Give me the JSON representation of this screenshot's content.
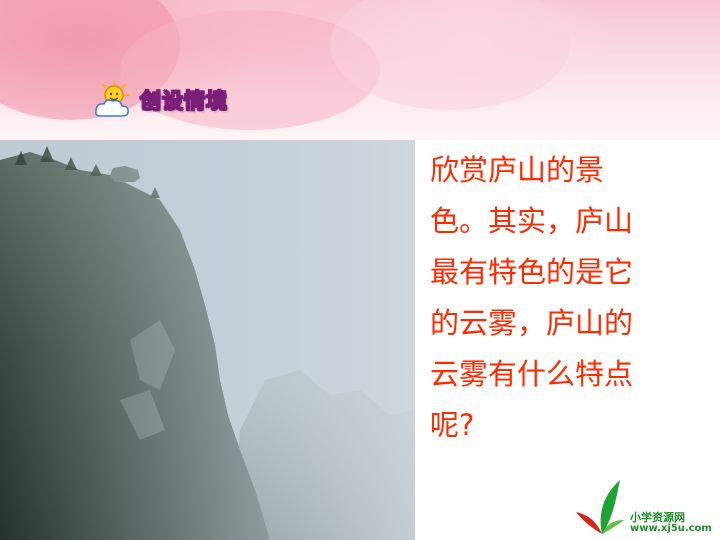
{
  "header": {
    "section_title": "创设情境"
  },
  "photo": {
    "subject": "mountain-in-fog"
  },
  "question": {
    "lines": [
      "欣赏庐山的景",
      "色。其实，庐山",
      "最有特色的是它",
      "的云雾，庐山的",
      "云雾有什么特点",
      "呢?"
    ],
    "color": "#ff2a00"
  },
  "watermark": {
    "site_name": "小学资源网",
    "site_url": "www.xj5u.com",
    "color": "#1d8f2a"
  }
}
